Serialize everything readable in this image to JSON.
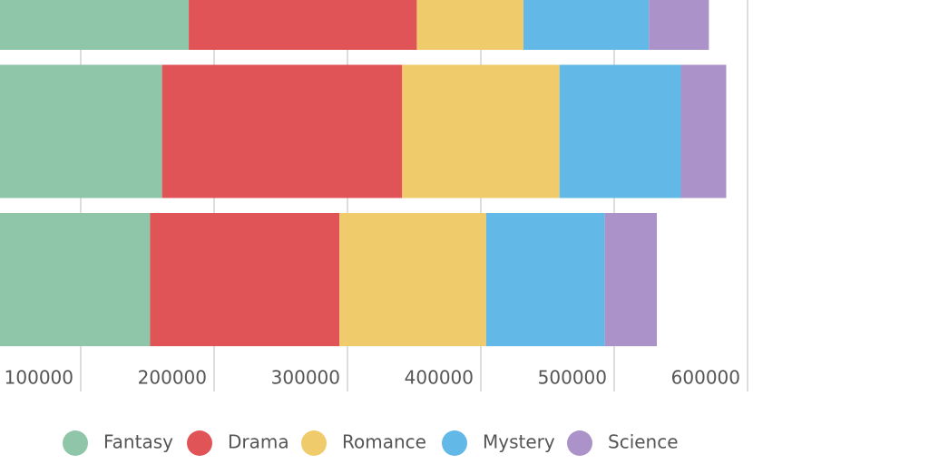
{
  "chart_data": {
    "type": "stacked-bar-horizontal",
    "categories": [
      null,
      null,
      null
    ],
    "series": [
      {
        "name": "Fantasy",
        "color": "#8fc5a8",
        "values": [
          181000,
          161000,
          152000
        ]
      },
      {
        "name": "Drama",
        "color": "#e05458",
        "values": [
          171000,
          180000,
          142000
        ]
      },
      {
        "name": "Romance",
        "color": "#efcb6b",
        "values": [
          80000,
          118000,
          110000
        ]
      },
      {
        "name": "Mystery",
        "color": "#62b8e6",
        "values": [
          94000,
          91000,
          89000
        ]
      },
      {
        "name": "Science",
        "color": "#ab92c9",
        "values": [
          45000,
          34000,
          39000
        ]
      }
    ],
    "xlim": [
      0,
      600000
    ],
    "xticks": [
      100000,
      200000,
      300000,
      400000,
      500000,
      600000
    ],
    "grid": true,
    "legend": "bottom"
  }
}
